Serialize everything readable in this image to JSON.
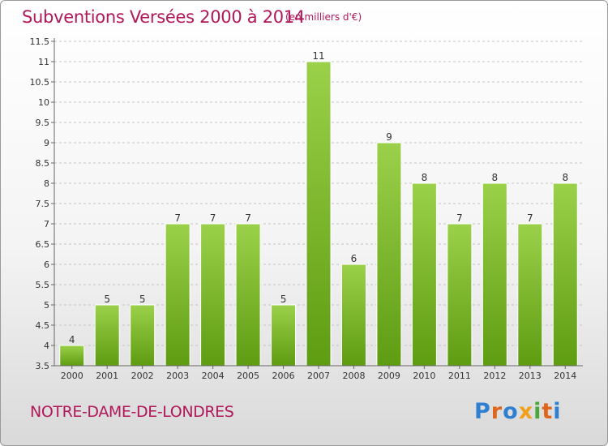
{
  "title": "Subventions Versées 2000 à 2014",
  "unit_note": "(en milliers d'€)",
  "commune": "NOTRE-DAME-DE-LONDRES",
  "logo_text": "Proxiti",
  "chart_data": {
    "type": "bar",
    "title": "Subventions Versées 2000 à 2014",
    "xlabel": "",
    "ylabel": "",
    "categories": [
      "2000",
      "2001",
      "2002",
      "2003",
      "2004",
      "2005",
      "2006",
      "2007",
      "2008",
      "2009",
      "2010",
      "2011",
      "2012",
      "2013",
      "2014"
    ],
    "values": [
      4,
      5,
      5,
      7,
      7,
      7,
      5,
      11,
      6,
      9,
      8,
      7,
      8,
      7,
      8
    ],
    "data_labels": [
      "4",
      "5",
      "5",
      "7",
      "7",
      "7",
      "5",
      "11",
      "6",
      "9",
      "8",
      "7",
      "8",
      "7",
      "8"
    ],
    "ylim": [
      3.5,
      11.5
    ],
    "yticks": [
      "3.5",
      "4",
      "4.5",
      "5",
      "5.5",
      "6",
      "6.5",
      "7",
      "7.5",
      "8",
      "8.5",
      "9",
      "9.5",
      "10",
      "10.5",
      "11",
      "11.5"
    ],
    "grid": true,
    "legend": "none",
    "bar_color_top": "#9bd14a",
    "bar_color_bottom": "#5e9c12"
  }
}
